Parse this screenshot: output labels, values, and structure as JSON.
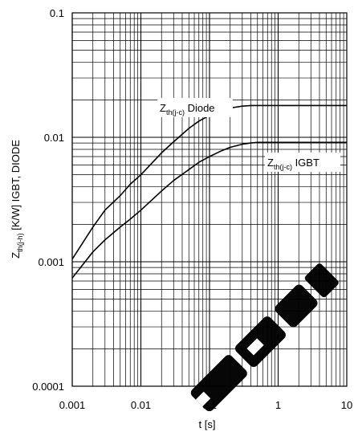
{
  "chart_data": {
    "type": "line",
    "x_scale": "log",
    "y_scale": "log",
    "xlim": [
      0.001,
      10
    ],
    "ylim": [
      0.0001,
      0.1
    ],
    "x_ticks": [
      "0.001",
      "0.01",
      "0.1",
      "1",
      "10"
    ],
    "y_ticks": [
      "0.0001",
      "0.001",
      "0.01",
      "0.1"
    ],
    "xlabel": "t  [s]",
    "ylabel": {
      "prefix": "Z",
      "subscript": "th(j-h)",
      "suffix": "  [K/W]   IGBT, DIODE"
    },
    "grid": true,
    "series": [
      {
        "label": {
          "main": "Z",
          "sub": "th(j-c)",
          "rest": " Diode"
        },
        "x": [
          0.001,
          0.002,
          0.003,
          0.005,
          0.007,
          0.01,
          0.02,
          0.03,
          0.05,
          0.07,
          0.1,
          0.15,
          0.2,
          0.3,
          0.4,
          0.5,
          0.6,
          0.8,
          1,
          2,
          5,
          10
        ],
        "y": [
          0.00105,
          0.0019,
          0.0026,
          0.0034,
          0.0042,
          0.005,
          0.0075,
          0.0092,
          0.0118,
          0.0135,
          0.015,
          0.0165,
          0.0172,
          0.0178,
          0.018,
          0.018,
          0.018,
          0.018,
          0.018,
          0.018,
          0.018,
          0.018
        ]
      },
      {
        "label": {
          "main": "Z",
          "sub": "th(j-c)",
          "rest": " IGBT"
        },
        "x": [
          0.001,
          0.002,
          0.003,
          0.005,
          0.007,
          0.01,
          0.02,
          0.03,
          0.05,
          0.07,
          0.1,
          0.15,
          0.2,
          0.3,
          0.4,
          0.5,
          0.6,
          0.8,
          1,
          2,
          5,
          10
        ],
        "y": [
          0.00074,
          0.0012,
          0.0015,
          0.0019,
          0.0022,
          0.0026,
          0.0037,
          0.0045,
          0.0055,
          0.0063,
          0.007,
          0.0078,
          0.0083,
          0.0088,
          0.009,
          0.0091,
          0.0091,
          0.0091,
          0.0091,
          0.0091,
          0.0091,
          0.0091
        ]
      }
    ]
  },
  "colors": {
    "grid": "#000000",
    "curve": "#000000",
    "watermark": "#000000"
  },
  "watermark": {
    "icon": "diagonal-logo-watermark"
  }
}
